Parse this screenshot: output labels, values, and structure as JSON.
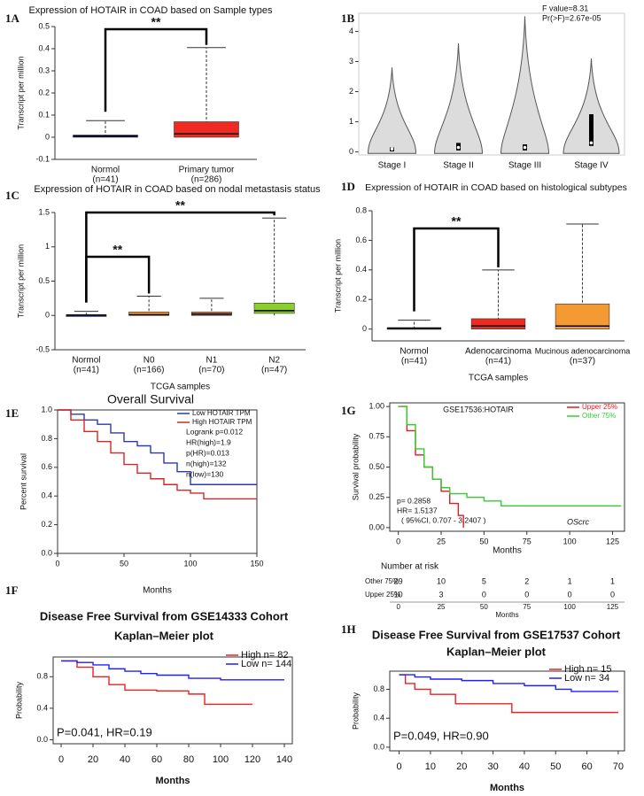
{
  "chart_data": [
    {
      "type": "box",
      "panel": "1A",
      "title": "Expression of HOTAIR in COAD based on Sample types",
      "ylabel": "Transcript per million",
      "categories": [
        "Normol",
        "Primary tumor"
      ],
      "n_labels": [
        "(n=41)",
        "(n=286)"
      ],
      "boxes": [
        {
          "min": 0,
          "q1": 0,
          "median": 0.005,
          "q3": 0.01,
          "max": 0.075,
          "color": "#3446c4"
        },
        {
          "min": 0,
          "q1": 0,
          "median": 0.015,
          "q3": 0.07,
          "max": 0.405,
          "color": "#ee2a22"
        }
      ],
      "ylim": [
        -0.1,
        0.5
      ],
      "yticks": [
        -0.1,
        0,
        0.1,
        0.2,
        0.3,
        0.4,
        0.5
      ],
      "annotations": [
        "**"
      ]
    },
    {
      "type": "violin",
      "panel": "1B",
      "categories": [
        "Stage I",
        "Stage II",
        "Stage III",
        "Stage IV"
      ],
      "violins": [
        {
          "q1": 0.02,
          "median": 0.1,
          "q3": 0.15,
          "max": 2.8
        },
        {
          "q1": 0.05,
          "median": 0.15,
          "q3": 0.3,
          "max": 3.6
        },
        {
          "q1": 0.05,
          "median": 0.15,
          "q3": 0.25,
          "max": 4.5
        },
        {
          "q1": 0.2,
          "median": 0.3,
          "q3": 1.25,
          "max": 3.1
        }
      ],
      "ylim": [
        -0.1,
        4.6
      ],
      "yticks": [
        0,
        1,
        2,
        3,
        4
      ],
      "annotations": [
        "F value=8.31",
        "Pr(>F)=2.67e-05"
      ]
    },
    {
      "type": "box",
      "panel": "1C",
      "title": "Expression of HOTAIR in COAD based on nodal metastasis status",
      "ylabel": "Transcript per million",
      "xlabel": "TCGA samples",
      "categories": [
        "Normol",
        "N0",
        "N1",
        "N2"
      ],
      "n_labels": [
        "(n=41)",
        "(n=166)",
        "(n=70)",
        "(n=47)"
      ],
      "boxes": [
        {
          "min": 0,
          "q1": 0,
          "median": 0.005,
          "q3": 0.01,
          "max": 0.06,
          "color": "#3446c4"
        },
        {
          "min": 0,
          "q1": 0,
          "median": 0.01,
          "q3": 0.05,
          "max": 0.28,
          "color": "#f28b2c"
        },
        {
          "min": 0,
          "q1": 0,
          "median": 0.02,
          "q3": 0.05,
          "max": 0.25,
          "color": "#c8783a"
        },
        {
          "min": 0,
          "q1": 0.03,
          "median": 0.07,
          "q3": 0.18,
          "max": 1.42,
          "color": "#8ccf2a"
        }
      ],
      "ylim": [
        -0.5,
        1.5
      ],
      "yticks": [
        -0.5,
        0,
        0.5,
        1,
        1.5
      ],
      "annotations": [
        "**",
        "**"
      ]
    },
    {
      "type": "box",
      "panel": "1D",
      "title": "Expression of HOTAIR in COAD based on histological subtypes",
      "ylabel": "Transcript per million",
      "xlabel": "TCGA samples",
      "categories": [
        "Normol",
        "Adenocarcinoma",
        "Mucinous adenocarcinoma"
      ],
      "n_labels": [
        "(n=41)",
        "(n=41)",
        "(n=37)"
      ],
      "boxes": [
        {
          "min": 0,
          "q1": 0,
          "median": 0.005,
          "q3": 0.01,
          "max": 0.06,
          "color": "#3446c4"
        },
        {
          "min": 0,
          "q1": 0,
          "median": 0.02,
          "q3": 0.07,
          "max": 0.4,
          "color": "#ee2a22"
        },
        {
          "min": 0,
          "q1": 0,
          "median": 0.02,
          "q3": 0.17,
          "max": 0.71,
          "color": "#f39a33"
        }
      ],
      "ylim": [
        -0.08,
        0.8
      ],
      "yticks": [
        0,
        0.2,
        0.4,
        0.6,
        0.8
      ],
      "annotations": [
        "**"
      ]
    },
    {
      "type": "km",
      "panel": "1E",
      "title": "Overall Survival",
      "xlabel": "Months",
      "ylabel": "Percent survival",
      "legend": "upper right",
      "series": [
        {
          "name": "Low HOTAIR TPM",
          "color": "#2d3aa8",
          "x": [
            0,
            10,
            20,
            30,
            40,
            50,
            60,
            70,
            80,
            90,
            100,
            110,
            120,
            150
          ],
          "values": [
            1,
            0.97,
            0.93,
            0.9,
            0.84,
            0.78,
            0.75,
            0.7,
            0.63,
            0.57,
            0.48,
            0.48,
            0.48,
            0.48
          ]
        },
        {
          "name": "High HOTAIR TPM",
          "color": "#d62728",
          "x": [
            0,
            10,
            20,
            30,
            40,
            50,
            60,
            70,
            80,
            90,
            100,
            110,
            120,
            150
          ],
          "values": [
            1,
            0.93,
            0.85,
            0.78,
            0.7,
            0.62,
            0.56,
            0.52,
            0.48,
            0.44,
            0.42,
            0.38,
            0.38,
            0.38
          ]
        }
      ],
      "annotations": [
        "Logrank p=0.012",
        "HR(high)=1.9",
        "p(HR)=0.013",
        "n(high)=132",
        "n(low)=130"
      ],
      "xlim": [
        0,
        150
      ],
      "xticks": [
        0,
        50,
        100,
        150
      ],
      "ylim": [
        0,
        1
      ],
      "yticks": [
        {
          "value": 0,
          "label": "0.0"
        },
        0.2,
        0.4,
        0.6,
        0.8,
        {
          "value": 1,
          "label": "1.0"
        }
      ]
    },
    {
      "type": "km",
      "panel": "1G",
      "title": "GSE17536:HOTAIR",
      "xlabel": "Months",
      "ylabel": "Survival probability",
      "legend": "upper right",
      "series": [
        {
          "name": "Upper 25%",
          "color": "#e41a1c",
          "x": [
            0,
            5,
            10,
            15,
            20,
            25,
            30,
            35,
            38
          ],
          "values": [
            1,
            0.8,
            0.6,
            0.5,
            0.4,
            0.3,
            0.2,
            0.1,
            0
          ]
        },
        {
          "name": "Other  75%",
          "color": "#33cc33",
          "x": [
            0,
            5,
            10,
            15,
            20,
            25,
            30,
            40,
            50,
            60,
            130
          ],
          "values": [
            1,
            0.85,
            0.65,
            0.5,
            0.4,
            0.33,
            0.28,
            0.25,
            0.22,
            0.18,
            0.18
          ]
        }
      ],
      "annotations": [
        "p= 0.2858",
        "HR= 1.5137",
        "( 95%CI, 0.707 - 3.2407 )",
        "OScrc"
      ],
      "xlim": [
        -5,
        132
      ],
      "xticks": [
        0,
        25,
        50,
        75,
        100,
        125
      ],
      "ylim": [
        -0.03,
        1.03
      ],
      "yticks": [
        {
          "value": 0,
          "label": "0.00"
        },
        {
          "value": 0.25,
          "label": "0.25"
        },
        {
          "value": 0.5,
          "label": "0.50"
        },
        {
          "value": 0.75,
          "label": "0.75"
        },
        {
          "value": 1,
          "label": "1.00"
        }
      ],
      "risk_table": {
        "title": "Number at risk",
        "rows": [
          {
            "name": "Other 75%",
            "counts": [
              29,
              10,
              5,
              2,
              1,
              1
            ]
          },
          {
            "name": "Upper 25%",
            "counts": [
              10,
              3,
              0,
              0,
              0,
              0
            ]
          }
        ],
        "xlabel": "Months"
      }
    },
    {
      "type": "km",
      "panel": "1F",
      "title": "Disease Free Survival from GSE14333 Cohort",
      "subtitle": "Kaplan–Meier plot",
      "xlabel": "Months",
      "ylabel": "Probability",
      "legend": "upper right",
      "series": [
        {
          "name": "High  n= 82",
          "color": "#ee2020",
          "x": [
            0,
            10,
            20,
            30,
            40,
            60,
            80,
            90,
            120
          ],
          "values": [
            1,
            0.92,
            0.8,
            0.7,
            0.63,
            0.62,
            0.58,
            0.45,
            0.45
          ]
        },
        {
          "name": "Low   n= 144",
          "color": "#1f1fff",
          "x": [
            0,
            10,
            20,
            30,
            40,
            50,
            60,
            80,
            100,
            140
          ],
          "values": [
            1,
            0.98,
            0.95,
            0.9,
            0.87,
            0.84,
            0.82,
            0.78,
            0.76,
            0.76
          ]
        }
      ],
      "annotations": [
        "P=0.041, HR=0.19"
      ],
      "xlim": [
        -5,
        145
      ],
      "xticks": [
        0,
        20,
        40,
        60,
        80,
        100,
        120,
        140
      ],
      "ylim": [
        -0.05,
        1.05
      ],
      "yticks": [
        {
          "value": 0,
          "label": "0.0"
        },
        0.4,
        0.8
      ]
    },
    {
      "type": "km",
      "panel": "1H",
      "title": "Disease Free Survival from GSE17537 Cohort",
      "subtitle": "Kaplan–Meier plot",
      "xlabel": "Months",
      "ylabel": "Probability",
      "legend": "upper right",
      "series": [
        {
          "name": "High  n= 15",
          "color": "#ee2020",
          "x": [
            0,
            2,
            5,
            10,
            18,
            36,
            70
          ],
          "values": [
            1,
            0.88,
            0.8,
            0.73,
            0.6,
            0.48,
            0.48
          ]
        },
        {
          "name": "Low   n= 34",
          "color": "#1f1fff",
          "x": [
            0,
            5,
            10,
            20,
            30,
            40,
            50,
            55,
            70
          ],
          "values": [
            1,
            0.97,
            0.94,
            0.92,
            0.88,
            0.85,
            0.8,
            0.77,
            0.77
          ]
        }
      ],
      "annotations": [
        "P=0.049, HR=0.90"
      ],
      "xlim": [
        -3,
        72
      ],
      "xticks": [
        0,
        10,
        20,
        30,
        40,
        50,
        60,
        70
      ],
      "ylim": [
        -0.05,
        1.05
      ],
      "yticks": [
        {
          "value": 0,
          "label": "0.0"
        },
        0.4,
        0.8
      ]
    }
  ]
}
